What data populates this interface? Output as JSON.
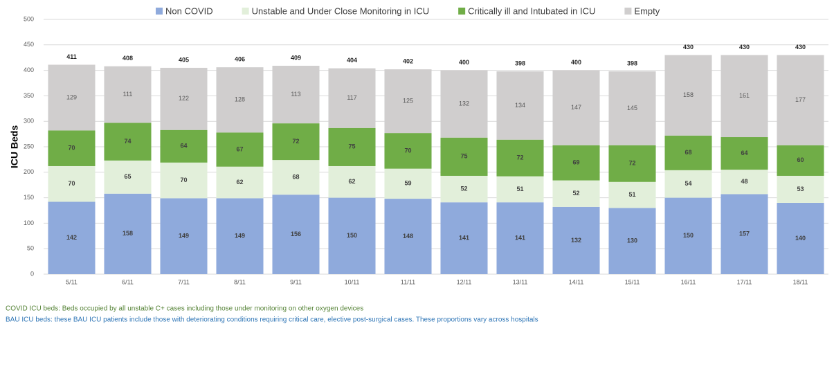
{
  "chart_data": {
    "type": "stacked_bar",
    "y_label": "ICU Beds",
    "categories": [
      "5/11",
      "6/11",
      "7/11",
      "8/11",
      "9/11",
      "10/11",
      "11/11",
      "12/11",
      "13/11",
      "14/11",
      "15/11",
      "16/11",
      "17/11",
      "18/11"
    ],
    "series": [
      {
        "name": "Non COVID",
        "color": "#8faadc",
        "values": [
          142,
          158,
          149,
          149,
          156,
          150,
          148,
          141,
          141,
          132,
          130,
          150,
          157,
          140
        ]
      },
      {
        "name": "Unstable and Under Close Monitoring in ICU",
        "color": "#e2efda",
        "values": [
          70,
          65,
          70,
          62,
          68,
          62,
          59,
          52,
          51,
          52,
          51,
          54,
          48,
          53
        ]
      },
      {
        "name": "Critically ill and Intubated in ICU",
        "color": "#70ad47",
        "values": [
          70,
          74,
          64,
          67,
          72,
          75,
          70,
          75,
          72,
          69,
          72,
          68,
          64,
          60
        ]
      },
      {
        "name": "Empty",
        "color": "#d0cece",
        "values": [
          129,
          111,
          122,
          128,
          113,
          117,
          125,
          132,
          134,
          147,
          145,
          158,
          161,
          177
        ]
      }
    ],
    "totals": [
      411,
      408,
      405,
      406,
      409,
      404,
      402,
      400,
      398,
      400,
      398,
      430,
      430,
      430
    ],
    "ylim": [
      0,
      500
    ],
    "yticks": [
      0,
      50,
      100,
      150,
      200,
      250,
      300,
      350,
      400,
      450,
      500
    ],
    "grid": true,
    "legend": "top",
    "notes": [
      {
        "text": "COVID ICU beds: Beds occupied by all unstable C+ cases including those under monitoring on other oxygen devices",
        "color": "#548235"
      },
      {
        "text": "BAU ICU beds: these BAU ICU patients include those with deteriorating conditions requiring critical care, elective post-surgical cases. These proportions vary across hospitals",
        "color": "#2e75b6"
      }
    ]
  }
}
